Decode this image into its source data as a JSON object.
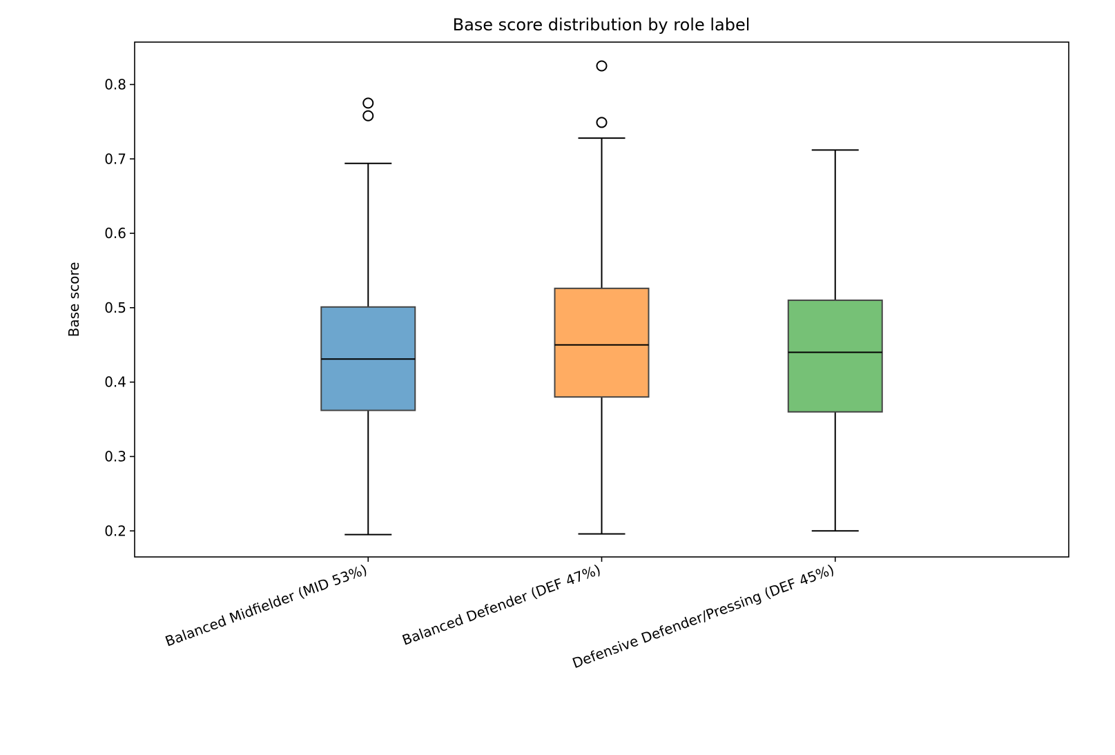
{
  "chart_data": {
    "type": "box",
    "title": "Base score distribution by role label",
    "xlabel": "",
    "ylabel": "Base score",
    "ylim": [
      0.165,
      0.857
    ],
    "yticks": [
      0.2,
      0.3,
      0.4,
      0.5,
      0.6,
      0.7,
      0.8
    ],
    "ytick_labels": [
      "0.2",
      "0.3",
      "0.4",
      "0.5",
      "0.6",
      "0.7",
      "0.8"
    ],
    "grid": false,
    "categories": [
      "Balanced Midfielder (MID 53%)",
      "Balanced Defender (DEF 47%)",
      "Defensive Defender/Pressing (DEF 45%)"
    ],
    "series": [
      {
        "color": "#1f77b4",
        "whisker_low": 0.195,
        "q1": 0.362,
        "median": 0.431,
        "q3": 0.501,
        "whisker_high": 0.694,
        "outliers": [
          0.758,
          0.775
        ]
      },
      {
        "color": "#ff7f0e",
        "whisker_low": 0.196,
        "q1": 0.38,
        "median": 0.45,
        "q3": 0.526,
        "whisker_high": 0.728,
        "outliers": [
          0.749,
          0.825
        ]
      },
      {
        "color": "#2ca02c",
        "whisker_low": 0.2,
        "q1": 0.36,
        "median": 0.44,
        "q3": 0.51,
        "whisker_high": 0.712,
        "outliers": []
      }
    ]
  }
}
